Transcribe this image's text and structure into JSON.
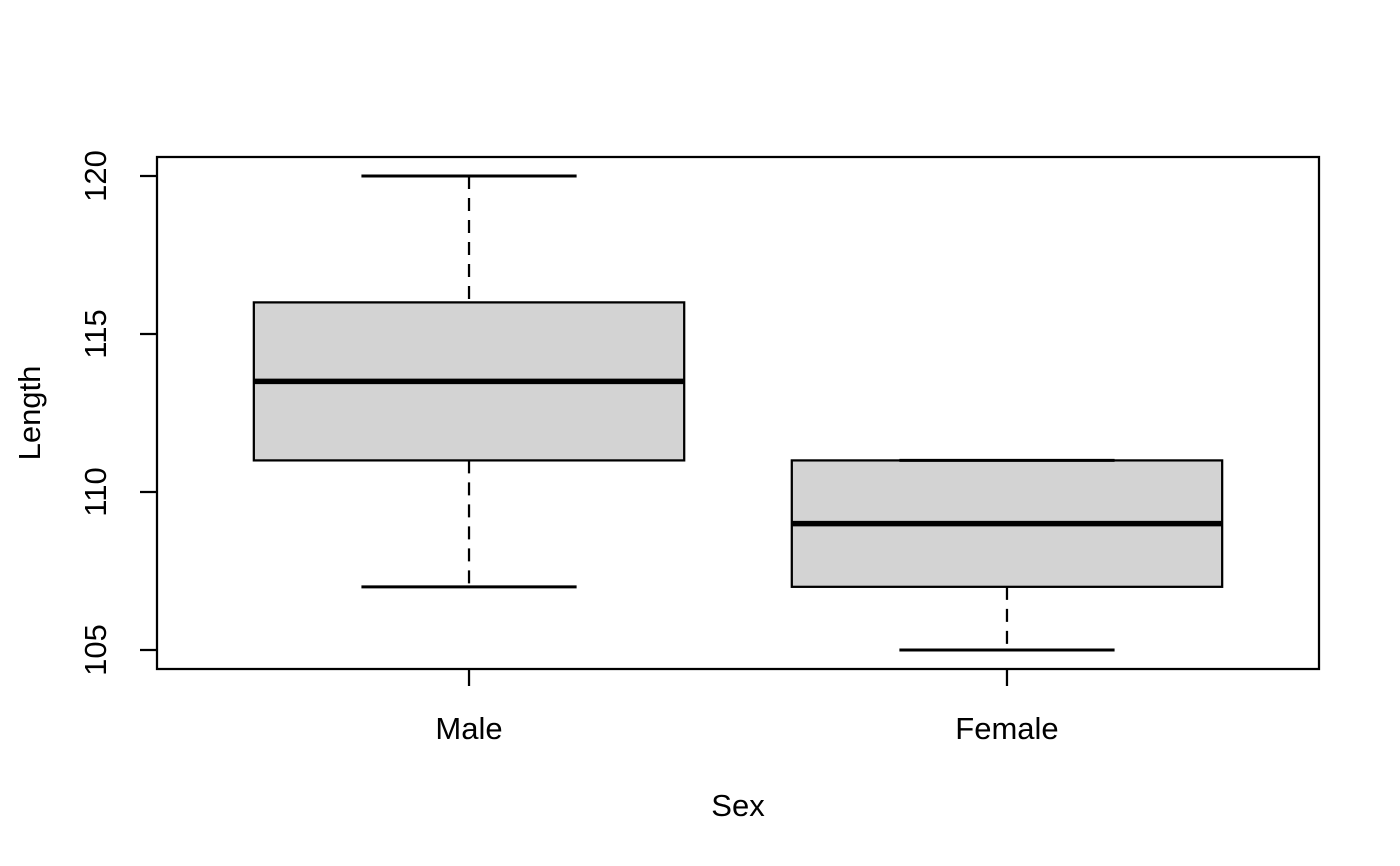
{
  "figure": {
    "background": "#ffffff"
  },
  "chart_data": {
    "type": "boxplot",
    "title": "",
    "xlabel": "Sex",
    "ylabel": "Length",
    "categories": [
      "Male",
      "Female"
    ],
    "yticks": [
      105,
      110,
      115,
      120
    ],
    "ylim": [
      104.4,
      120.6
    ],
    "grid": false,
    "legend": "none",
    "box_fill": "#d3d3d3",
    "stroke_color": "#000000",
    "series": [
      {
        "name": "Male",
        "whisker_low": 107,
        "q1": 111,
        "median": 113.5,
        "q3": 116,
        "whisker_high": 120,
        "outliers": []
      },
      {
        "name": "Female",
        "whisker_low": 105,
        "q1": 107,
        "median": 109,
        "q3": 111,
        "whisker_high": 111,
        "outliers": []
      }
    ]
  }
}
